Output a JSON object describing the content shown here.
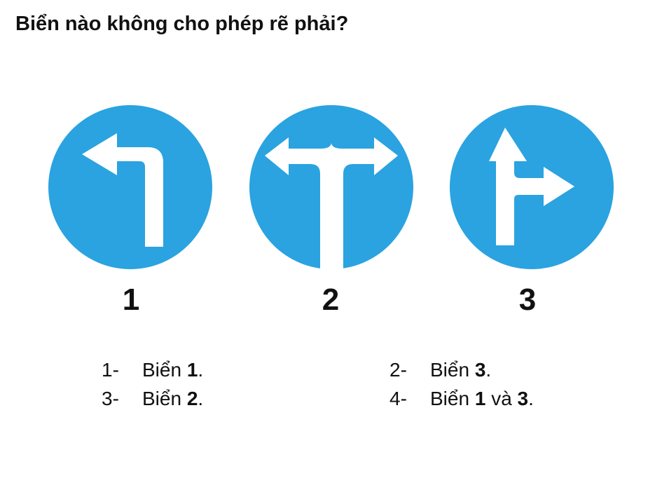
{
  "question": "Biển nào không cho phép rẽ phải?",
  "colors": {
    "sign_blue": "#2AA3E0",
    "arrow": "#ffffff",
    "text": "#111111"
  },
  "signs": [
    {
      "number": "1",
      "icon": "turn-left-arrow-icon"
    },
    {
      "number": "2",
      "icon": "left-right-fork-arrow-icon"
    },
    {
      "number": "3",
      "icon": "straight-or-right-arrow-icon"
    }
  ],
  "answers": [
    {
      "index": "1-",
      "prefix": "Biển",
      "bold1": "1",
      "middle": "",
      "bold2": "",
      "suffix": "."
    },
    {
      "index": "2-",
      "prefix": "Biển",
      "bold1": "3",
      "middle": "",
      "bold2": "",
      "suffix": "."
    },
    {
      "index": "3-",
      "prefix": "Biển",
      "bold1": "2",
      "middle": "",
      "bold2": "",
      "suffix": "."
    },
    {
      "index": "4-",
      "prefix": "Biển",
      "bold1": "1",
      "middle": "và",
      "bold2": "3",
      "suffix": "."
    }
  ]
}
